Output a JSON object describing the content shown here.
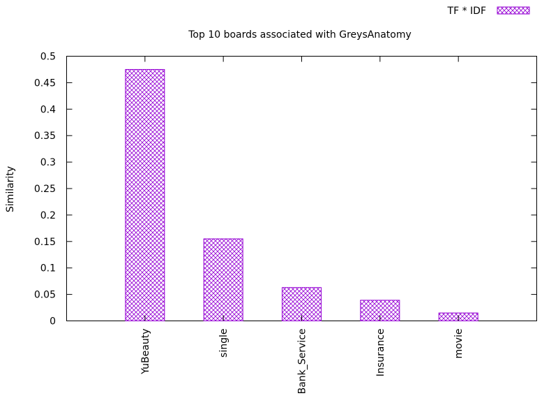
{
  "chart_data": {
    "type": "bar",
    "title": "Top 10 boards associated with GreysAnatomy",
    "xlabel": "",
    "ylabel": "Similarity",
    "categories": [
      "YuBeauty",
      "single",
      "Bank_Service",
      "Insurance",
      "movie"
    ],
    "series": [
      {
        "name": "TF * IDF",
        "values": [
          0.475,
          0.155,
          0.063,
          0.039,
          0.015
        ]
      }
    ],
    "ylim": [
      0,
      0.5
    ],
    "yticks": [
      "0",
      "0.05",
      "0.1",
      "0.15",
      "0.2",
      "0.25",
      "0.3",
      "0.35",
      "0.4",
      "0.45",
      "0.5"
    ],
    "grid": false,
    "legend_position": "top-right",
    "bar_color": "#9400d3",
    "bar_pattern": "crosshatch"
  }
}
